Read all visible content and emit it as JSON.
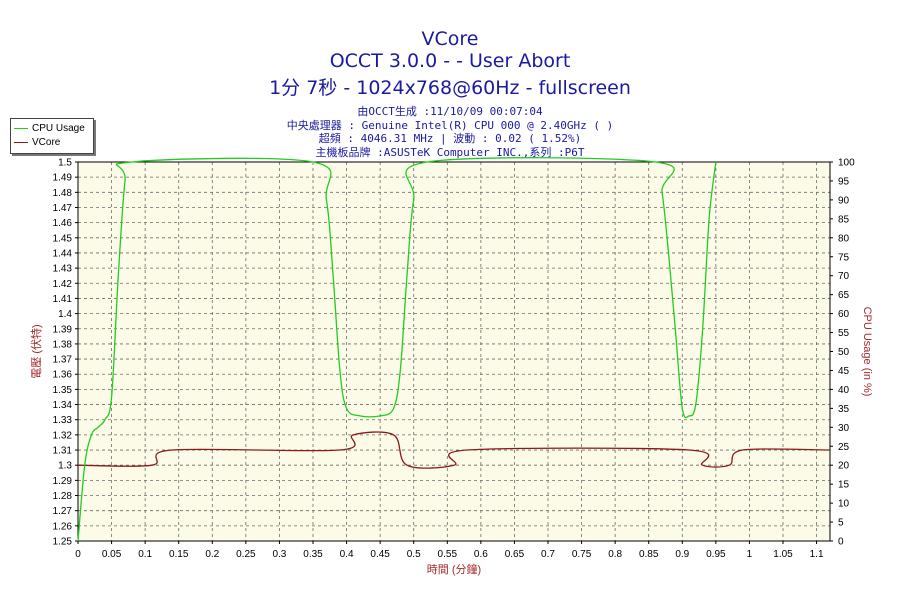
{
  "titles": {
    "line1": "VCore",
    "line2": "OCCT 3.0.0 -  - User Abort",
    "line3": "1分 7秒 - 1024x768@60Hz - fullscreen"
  },
  "info": {
    "line1": "由OCCT生成 :11/10/09 00:07:04",
    "line2": "中央處理器 : Genuine Intel(R) CPU 000 @ 2.40GHz (  )",
    "line3": "超頻 : 4046.31 MHz | 波動 : 0.02 ( 1.52%)",
    "line4": "主機板品牌 :ASUSTeK Computer INC.,系列 :P6T"
  },
  "colors": {
    "cpu_usage": "#22cc22",
    "vcore": "#8b1a1a",
    "plot_bg": "#fbfbe8",
    "grid": "#6b6b6b",
    "axis_label": "#a52a2a"
  },
  "chart_data": {
    "type": "line",
    "xlabel": "時間 (分鐘)",
    "ylabel": "電壓 (伏特)",
    "y2label": "CPU Usage (in %)",
    "xlim": [
      0,
      1.12
    ],
    "ylim": [
      1.25,
      1.5
    ],
    "y2lim": [
      0,
      100
    ],
    "x_ticks": [
      "0",
      "0.05",
      "0.1",
      "0.15",
      "0.2",
      "0.25",
      "0.3",
      "0.35",
      "0.4",
      "0.45",
      "0.5",
      "0.55",
      "0.6",
      "0.65",
      "0.7",
      "0.75",
      "0.8",
      "0.85",
      "0.9",
      "0.95",
      "1",
      "1.05",
      "1.1"
    ],
    "y_ticks": [
      "1.25",
      "1.26",
      "1.27",
      "1.28",
      "1.29",
      "1.3",
      "1.31",
      "1.32",
      "1.33",
      "1.34",
      "1.35",
      "1.36",
      "1.37",
      "1.38",
      "1.39",
      "1.4",
      "1.41",
      "1.42",
      "1.43",
      "1.44",
      "1.45",
      "1.46",
      "1.47",
      "1.48",
      "1.49",
      "1.5"
    ],
    "y2_ticks": [
      "0",
      "5",
      "10",
      "15",
      "20",
      "25",
      "30",
      "35",
      "40",
      "45",
      "50",
      "55",
      "60",
      "65",
      "70",
      "75",
      "80",
      "85",
      "90",
      "95",
      "100"
    ],
    "grid": true,
    "legend_position": "top-left",
    "series": [
      {
        "name": "CPU Usage",
        "axis": "right",
        "x": [
          0,
          0.01,
          0.02,
          0.03,
          0.04,
          0.05,
          0.06,
          0.07,
          0.08,
          0.35,
          0.37,
          0.38,
          0.39,
          0.4,
          0.42,
          0.45,
          0.47,
          0.48,
          0.49,
          0.5,
          0.52,
          0.86,
          0.87,
          0.88,
          0.89,
          0.9,
          0.91,
          0.92,
          0.93,
          0.94,
          0.95
        ],
        "y": [
          0,
          20,
          28,
          30,
          32,
          38,
          70,
          95,
          100,
          100,
          90,
          70,
          45,
          35,
          33,
          33,
          35,
          45,
          70,
          90,
          100,
          100,
          92,
          75,
          55,
          35,
          33,
          36,
          55,
          85,
          100
        ]
      },
      {
        "name": "VCore",
        "axis": "left",
        "x": [
          0,
          0.11,
          0.14,
          0.39,
          0.41,
          0.47,
          0.49,
          0.56,
          0.58,
          0.91,
          0.93,
          0.97,
          0.99,
          1.12
        ],
        "y": [
          1.3,
          1.3,
          1.31,
          1.31,
          1.32,
          1.32,
          1.3,
          1.3,
          1.31,
          1.31,
          1.3,
          1.3,
          1.31,
          1.31
        ]
      }
    ]
  }
}
